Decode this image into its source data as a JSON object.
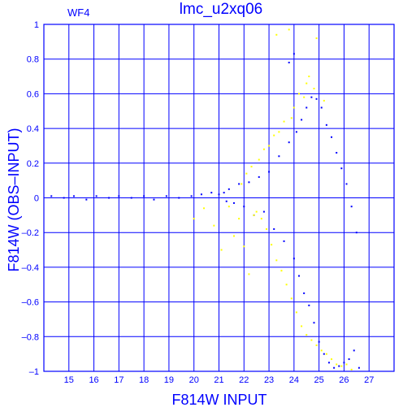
{
  "header": {
    "panel_label": "WF4",
    "title": "lmc_u2xq06"
  },
  "chart_data": {
    "type": "scatter",
    "title": "lmc_u2xq06",
    "subtitle": "WF4",
    "xlabel": "F814W  INPUT",
    "ylabel": "F814W  (OBS–INPUT)",
    "xlim": [
      14,
      28
    ],
    "ylim": [
      -1,
      1
    ],
    "grid": true,
    "x_ticks": [
      15,
      16,
      17,
      18,
      19,
      20,
      21,
      22,
      23,
      24,
      25,
      26,
      27
    ],
    "y_ticks": [
      -1,
      -0.8,
      -0.6,
      -0.4,
      -0.2,
      0,
      0.2,
      0.4,
      0.6,
      0.8,
      1
    ],
    "y_tick_labels": [
      "–1",
      "–0.8",
      "–0.6",
      "–0.4",
      "–0.2",
      "0",
      "0.2",
      "0.4",
      "0.6",
      "0.8",
      "1"
    ],
    "series": [
      {
        "color": "#0000ff",
        "points": [
          [
            14.3,
            0.01
          ],
          [
            14.8,
            0.0
          ],
          [
            15.2,
            0.01
          ],
          [
            15.7,
            -0.01
          ],
          [
            16.1,
            0.01
          ],
          [
            16.6,
            0.0
          ],
          [
            17.0,
            0.01
          ],
          [
            17.5,
            0.0
          ],
          [
            18.0,
            0.01
          ],
          [
            18.4,
            -0.01
          ],
          [
            18.9,
            0.01
          ],
          [
            19.4,
            0.0
          ],
          [
            19.9,
            0.01
          ],
          [
            20.3,
            0.02
          ],
          [
            20.7,
            0.03
          ],
          [
            21.0,
            0.02
          ],
          [
            21.2,
            0.03
          ],
          [
            21.3,
            -0.02
          ],
          [
            21.4,
            0.05
          ],
          [
            21.6,
            -0.03
          ],
          [
            21.8,
            0.08
          ],
          [
            22.0,
            -0.05
          ],
          [
            22.2,
            0.09
          ],
          [
            22.4,
            -0.1
          ],
          [
            22.6,
            0.12
          ],
          [
            22.8,
            -0.08
          ],
          [
            23.0,
            0.15
          ],
          [
            23.2,
            -0.18
          ],
          [
            23.4,
            0.24
          ],
          [
            23.6,
            -0.25
          ],
          [
            23.8,
            0.32
          ],
          [
            24.0,
            -0.35
          ],
          [
            24.1,
            0.38
          ],
          [
            24.2,
            -0.45
          ],
          [
            24.3,
            0.45
          ],
          [
            24.4,
            -0.55
          ],
          [
            24.5,
            0.52
          ],
          [
            24.6,
            -0.62
          ],
          [
            24.7,
            0.58
          ],
          [
            24.8,
            -0.72
          ],
          [
            24.9,
            0.57
          ],
          [
            25.0,
            -0.83
          ],
          [
            25.1,
            0.52
          ],
          [
            25.2,
            -0.9
          ],
          [
            25.3,
            0.42
          ],
          [
            25.4,
            -0.95
          ],
          [
            25.5,
            0.35
          ],
          [
            25.6,
            -0.98
          ],
          [
            25.7,
            0.26
          ],
          [
            25.8,
            -0.97
          ],
          [
            25.9,
            0.17
          ],
          [
            26.0,
            -0.95
          ],
          [
            26.1,
            0.08
          ],
          [
            26.2,
            -0.93
          ],
          [
            26.3,
            -0.05
          ],
          [
            26.4,
            -0.88
          ],
          [
            26.5,
            -0.2
          ],
          [
            26.6,
            -0.98
          ],
          [
            24.0,
            0.83
          ],
          [
            23.8,
            0.78
          ]
        ]
      },
      {
        "color": "#ffff00",
        "points": [
          [
            20.0,
            -0.12
          ],
          [
            20.4,
            -0.06
          ],
          [
            20.8,
            -0.16
          ],
          [
            21.1,
            -0.3
          ],
          [
            21.4,
            -0.05
          ],
          [
            21.6,
            -0.22
          ],
          [
            21.8,
            -0.12
          ],
          [
            22.0,
            -0.28
          ],
          [
            22.2,
            -0.44
          ],
          [
            22.4,
            -0.1
          ],
          [
            22.5,
            -0.08
          ],
          [
            22.7,
            -0.12
          ],
          [
            22.9,
            -0.18
          ],
          [
            23.1,
            -0.27
          ],
          [
            23.3,
            -0.36
          ],
          [
            23.5,
            -0.42
          ],
          [
            23.7,
            -0.5
          ],
          [
            23.9,
            -0.58
          ],
          [
            24.1,
            -0.66
          ],
          [
            24.3,
            -0.74
          ],
          [
            24.5,
            -0.79
          ],
          [
            24.7,
            -0.82
          ],
          [
            24.9,
            -0.85
          ],
          [
            25.1,
            -0.88
          ],
          [
            25.3,
            -0.9
          ],
          [
            25.5,
            -0.93
          ],
          [
            25.7,
            -0.96
          ],
          [
            25.9,
            -0.97
          ],
          [
            26.1,
            -0.96
          ],
          [
            26.3,
            -0.99
          ],
          [
            22.3,
            0.18
          ],
          [
            22.8,
            0.28
          ],
          [
            23.2,
            0.36
          ],
          [
            23.6,
            0.44
          ],
          [
            24.0,
            0.52
          ],
          [
            24.4,
            0.58
          ],
          [
            24.8,
            0.63
          ],
          [
            25.2,
            0.56
          ],
          [
            24.6,
            0.7
          ],
          [
            24.9,
            0.92
          ],
          [
            23.3,
            0.94
          ],
          [
            23.8,
            0.97
          ],
          [
            21.9,
            0.08
          ],
          [
            22.1,
            0.14
          ],
          [
            22.6,
            0.22
          ],
          [
            23.0,
            0.3
          ],
          [
            23.4,
            0.38
          ],
          [
            23.9,
            0.46
          ],
          [
            24.2,
            0.6
          ],
          [
            24.5,
            0.66
          ]
        ]
      }
    ]
  }
}
